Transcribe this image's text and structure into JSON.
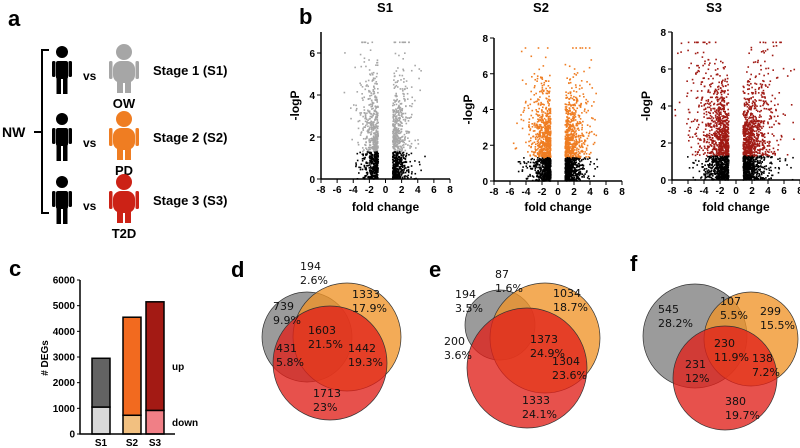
{
  "panel_labels": {
    "a": "a",
    "b": "b",
    "c": "c",
    "d": "d",
    "e": "e",
    "f": "f"
  },
  "panel_a": {
    "reference": "NW",
    "vs": "vs",
    "rows": [
      {
        "stage": "Stage 1 (S1)",
        "group": "OW",
        "color": "#a6a6a6"
      },
      {
        "stage": "Stage 2 (S2)",
        "group": "PD",
        "color": "#ef7d22"
      },
      {
        "stage": "Stage 3 (S3)",
        "group": "T2D",
        "color": "#cc2216"
      }
    ]
  },
  "chart_data": [
    {
      "type": "scatter",
      "panel": "b",
      "title": "S1",
      "xlabel": "fold change",
      "ylabel": "-logP",
      "xlim": [
        -8,
        8
      ],
      "ylim": [
        0,
        7
      ],
      "xticks": [
        -8,
        -6,
        -4,
        -2,
        0,
        2,
        4,
        6,
        8
      ],
      "yticks": [
        0,
        2,
        4,
        6
      ],
      "significance_threshold_logP": 1.3,
      "sig_color": "#a6a6a6",
      "nonsig_color": "#000000"
    },
    {
      "type": "scatter",
      "panel": "b",
      "title": "S2",
      "xlabel": "fold change",
      "ylabel": "-logP",
      "xlim": [
        -8,
        8
      ],
      "ylim": [
        0,
        8
      ],
      "xticks": [
        -8,
        -6,
        -4,
        -2,
        0,
        2,
        4,
        6,
        8
      ],
      "yticks": [
        0,
        2,
        4,
        6,
        8
      ],
      "significance_threshold_logP": 1.3,
      "sig_color": "#ef7d22",
      "nonsig_color": "#000000"
    },
    {
      "type": "scatter",
      "panel": "b",
      "title": "S3",
      "xlabel": "fold change",
      "ylabel": "-logP",
      "xlim": [
        -8,
        8
      ],
      "ylim": [
        0,
        8
      ],
      "xticks": [
        -8,
        -6,
        -4,
        -2,
        0,
        2,
        4,
        6,
        8
      ],
      "yticks": [
        0,
        2,
        4,
        6,
        8
      ],
      "significance_threshold_logP": 1.3,
      "sig_color": "#a01a14",
      "nonsig_color": "#000000"
    },
    {
      "type": "bar",
      "panel": "c",
      "stacked": true,
      "ylabel": "# DEGs",
      "ylim": [
        0,
        6000
      ],
      "yticks": [
        0,
        1000,
        2000,
        3000,
        4000,
        5000,
        6000
      ],
      "categories": [
        "S1",
        "S2",
        "S3"
      ],
      "series": [
        {
          "name": "down",
          "values": [
            1050,
            730,
            920
          ],
          "colors": [
            "#d9d9d9",
            "#f2c080",
            "#f07f86"
          ]
        },
        {
          "name": "up",
          "values": [
            1900,
            3820,
            4230
          ],
          "colors": [
            "#636363",
            "#f26a1f",
            "#a31a14"
          ]
        }
      ]
    }
  ],
  "venn": {
    "d": [
      {
        "n": "194",
        "p": "2.6%"
      },
      {
        "n": "1333",
        "p": "17.9%"
      },
      {
        "n": "739",
        "p": "9.9%"
      },
      {
        "n": "1603",
        "p": "21.5%"
      },
      {
        "n": "431",
        "p": "5.8%"
      },
      {
        "n": "1442",
        "p": "19.3%"
      },
      {
        "n": "1713",
        "p": "23%"
      }
    ],
    "e": [
      {
        "n": "87",
        "p": "1.6%"
      },
      {
        "n": "194",
        "p": "3.5%"
      },
      {
        "n": "1034",
        "p": "18.7%"
      },
      {
        "n": "200",
        "p": "3.6%"
      },
      {
        "n": "1373",
        "p": "24.9%"
      },
      {
        "n": "1304",
        "p": "23.6%"
      },
      {
        "n": "1333",
        "p": "24.1%"
      }
    ],
    "f": [
      {
        "n": "545",
        "p": "28.2%"
      },
      {
        "n": "107",
        "p": "5.5%"
      },
      {
        "n": "299",
        "p": "15.5%"
      },
      {
        "n": "230",
        "p": "11.9%"
      },
      {
        "n": "138",
        "p": "7.2%"
      },
      {
        "n": "231",
        "p": "12%"
      },
      {
        "n": "380",
        "p": "19.7%"
      }
    ],
    "colors": {
      "gray": "#7f7f7f",
      "orange": "#ef9428",
      "red": "#e0201a"
    }
  }
}
